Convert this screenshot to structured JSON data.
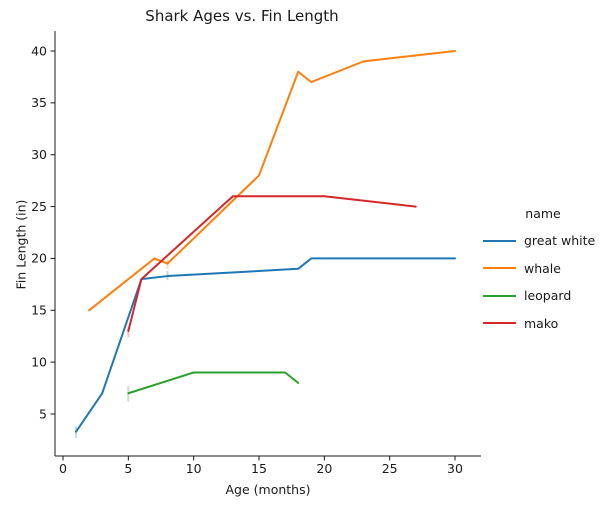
{
  "figure": {
    "background": "#ffffff",
    "text_color": "#1a1a1a"
  },
  "chart_data": {
    "type": "line",
    "title": "Shark Ages vs. Fin Length",
    "xlabel": "Age (months)",
    "ylabel": "Fin Length (in)",
    "x_ticks": [
      0,
      5,
      10,
      15,
      20,
      25,
      30
    ],
    "y_ticks": [
      5,
      10,
      15,
      20,
      25,
      30,
      35,
      40
    ],
    "xlim": [
      -0.6,
      31.9
    ],
    "ylim": [
      1.0,
      41.9
    ],
    "grid": false,
    "legend": {
      "title": "name",
      "position": "right-center",
      "entries": [
        "great white",
        "whale",
        "leopard",
        "mako"
      ]
    },
    "series": [
      {
        "name": "great white",
        "color": "#1f77b4",
        "points": [
          [
            1,
            3.3
          ],
          [
            3,
            7
          ],
          [
            6,
            18
          ],
          [
            8,
            18.3
          ],
          [
            18,
            19
          ],
          [
            19,
            20
          ],
          [
            30,
            20
          ]
        ]
      },
      {
        "name": "whale",
        "color": "#ff7f0e",
        "points": [
          [
            2,
            15
          ],
          [
            7,
            20
          ],
          [
            8,
            19.5
          ],
          [
            15,
            28
          ],
          [
            18,
            38
          ],
          [
            19,
            37
          ],
          [
            23,
            39
          ],
          [
            30,
            40
          ]
        ]
      },
      {
        "name": "leopard",
        "color": "#2ca02c",
        "points": [
          [
            5,
            7
          ],
          [
            10,
            9
          ],
          [
            17,
            9
          ],
          [
            18,
            8
          ]
        ]
      },
      {
        "name": "mako",
        "color": "#d62728",
        "points": [
          [
            5,
            13
          ],
          [
            6,
            18
          ],
          [
            13,
            26
          ],
          [
            20,
            26
          ],
          [
            27,
            25
          ]
        ]
      }
    ],
    "ci_marks": [
      {
        "series": "great white",
        "x": 1,
        "lo": 2.7,
        "hi": 3.8
      },
      {
        "series": "great white",
        "x": 8,
        "lo": 17.9,
        "hi": 18.8
      },
      {
        "series": "whale",
        "x": 8,
        "lo": 19.0,
        "hi": 20.0
      },
      {
        "series": "leopard",
        "x": 5,
        "lo": 6.2,
        "hi": 7.7
      },
      {
        "series": "mako",
        "x": 5,
        "lo": 12.4,
        "hi": 13.4
      }
    ]
  }
}
